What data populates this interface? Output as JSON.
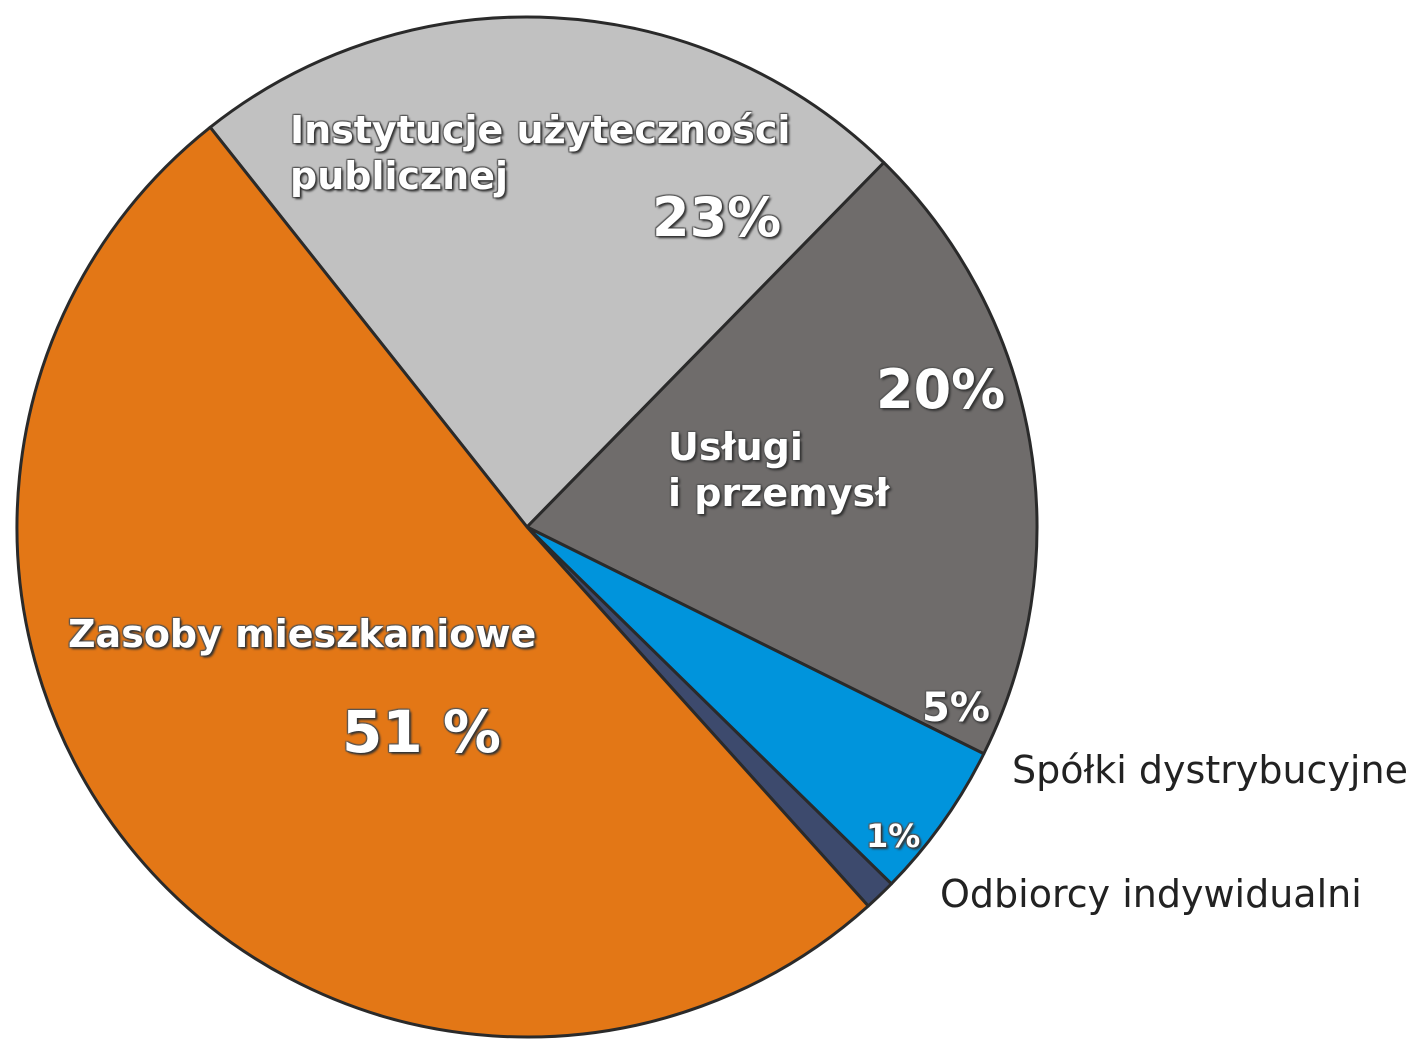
{
  "chart_data": {
    "type": "pie",
    "categories": [
      "Instytucje użyteczności\npublicznej",
      "Usługi\ni przemysł",
      "Spółki dystrybucyjne",
      "Odbiorcy indywidualni",
      "Zasoby mieszkaniowe"
    ],
    "values": [
      23,
      20,
      5,
      1,
      51
    ],
    "value_labels": [
      "23%",
      "20%",
      "5%",
      "1%",
      "51 %"
    ],
    "colors": [
      "#c1c1c1",
      "#6f6c6b",
      "#0094dc",
      "#3d4a6d",
      "#e37716"
    ]
  }
}
